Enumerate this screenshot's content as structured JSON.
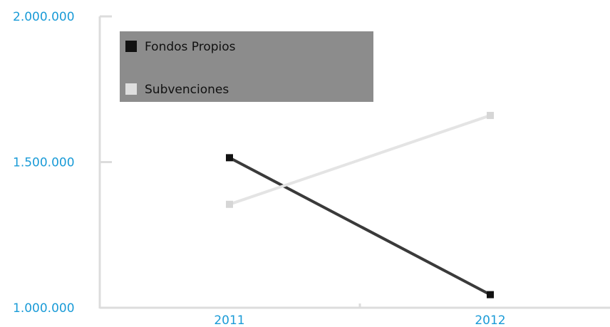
{
  "chart_data": {
    "type": "line",
    "categories": [
      "2011",
      "2012"
    ],
    "series": [
      {
        "name": "Fondos Propios",
        "values": [
          1515000,
          1045000
        ],
        "color": "#3a3a3a",
        "marker_color": "#111111"
      },
      {
        "name": "Subvenciones",
        "values": [
          1355000,
          1660000
        ],
        "color": "#e4e4e4",
        "marker_color": "#d6d6d6"
      }
    ],
    "y_ticks": [
      {
        "value": 1000000,
        "label": "1.000.000"
      },
      {
        "value": 1500000,
        "label": "1.500.000"
      },
      {
        "value": 2000000,
        "label": "2.000.000"
      }
    ],
    "ylim": [
      1000000,
      2000000
    ],
    "legend": {
      "placement": "top-left",
      "background": "#8c8c8c"
    },
    "grid": false,
    "colors": {
      "tick_label": "#1a9bd7",
      "axis": "#dcdcdc"
    }
  }
}
